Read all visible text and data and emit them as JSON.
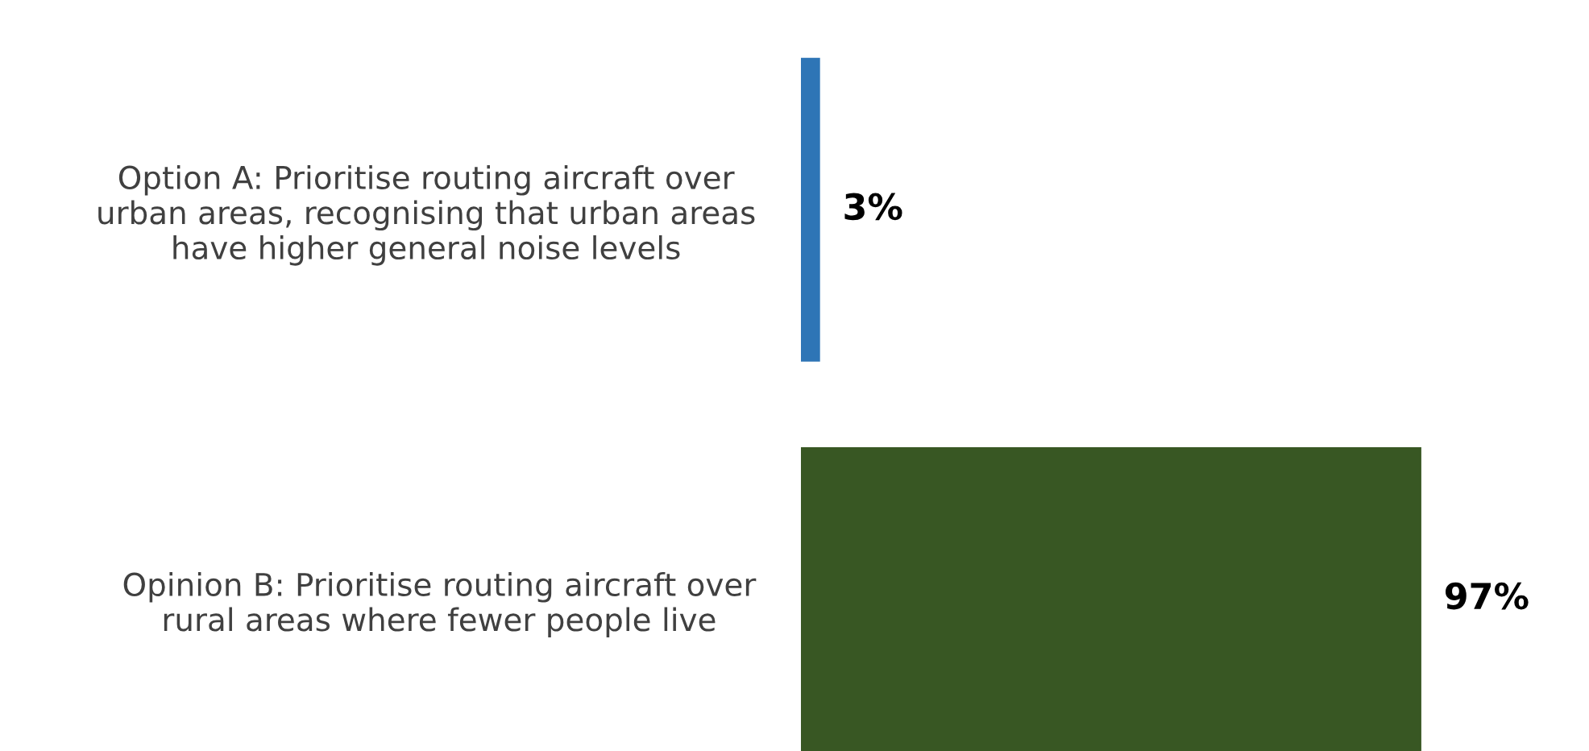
{
  "chart_data": {
    "type": "bar",
    "orientation": "horizontal",
    "categories": [
      "Option A: Prioritise routing aircraft over\nurban areas, recognising that urban areas\nhave higher general noise levels",
      "Opinion B: Prioritise routing aircraft over\nrural areas where fewer people live"
    ],
    "values": [
      3,
      97
    ],
    "colors": [
      "#2e75b6",
      "#385723"
    ],
    "value_labels": [
      "3%",
      "97%"
    ],
    "grid": false,
    "legend": false
  }
}
